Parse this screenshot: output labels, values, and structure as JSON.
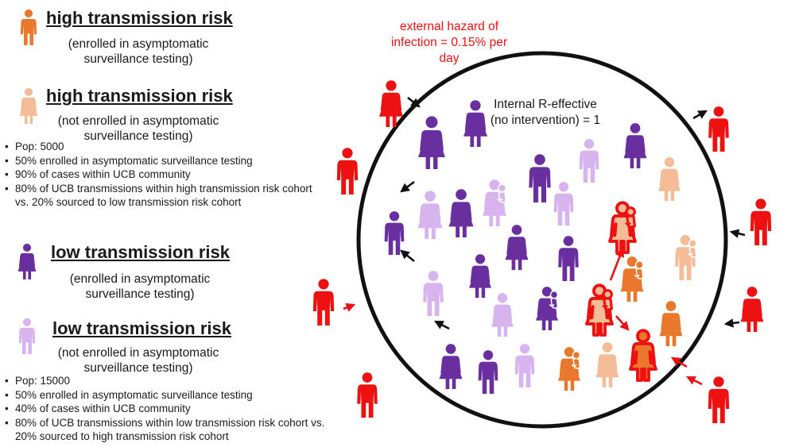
{
  "legend": [
    {
      "title": "high transmission risk",
      "note": "(enrolled in asymptomatic surveillance testing)",
      "color": "#e9782d"
    },
    {
      "title": "high transmission risk",
      "note": "(not enrolled in asymptomatic surveillance testing)",
      "color": "#f4bd97"
    },
    {
      "title": "low transmission risk",
      "note": "(enrolled in asymptomatic surveillance testing)",
      "color": "#6a2f9e"
    },
    {
      "title": "low transmission risk",
      "note": "(not enrolled in asymptomatic surveillance testing)",
      "color": "#d8b4ee"
    }
  ],
  "high_bullets": [
    "Pop: 5000",
    "50% enrolled in asymptomatic surveillance testing",
    "90%  of cases within UCB community",
    "80% of UCB transmissions within high transmission risk cohort vs. 20% sourced to low transmission risk cohort"
  ],
  "low_bullets": [
    "Pop: 15000",
    "50% enrolled in asymptomatic surveillance testing",
    "40%  of cases within UCB community",
    "80% of UCB transmissions within low transmission risk cohort vs. 20% sourced to high transmission risk cohort"
  ],
  "external_hazard": "external hazard of infection = 0.15% per day",
  "internal_r": "Internal R-effective (no intervention) = 1",
  "colors": {
    "external": "#ee1111",
    "outline": "#ee1111",
    "arrow_black": "#111111",
    "arrow_red": "#ee1111"
  },
  "icons": [
    "person-icon",
    "person-dress-icon",
    "parent-child-icon",
    "arrow-icon"
  ]
}
